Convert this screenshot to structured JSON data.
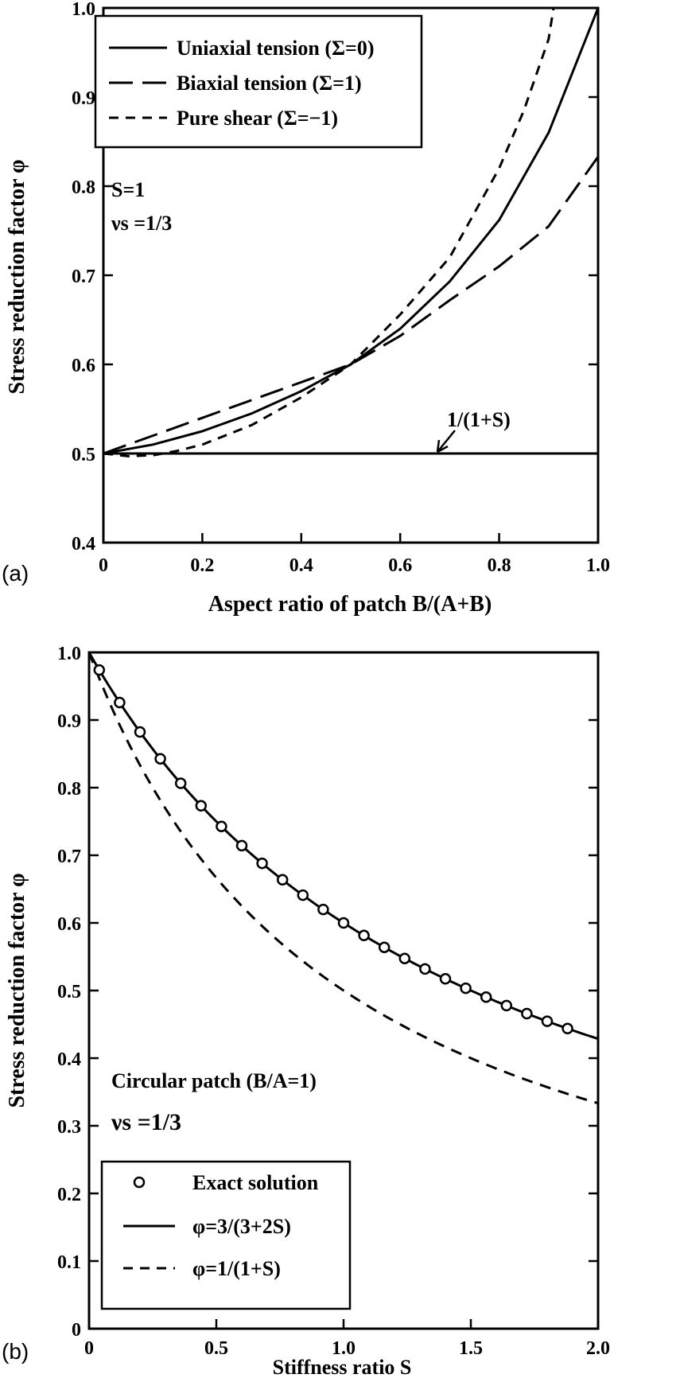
{
  "chart_data": [
    {
      "type": "line",
      "panel_label": "(a)",
      "xlabel": "Aspect ratio of patch   B/(A+B)",
      "ylabel": "Stress reduction factor  φ",
      "xlim": [
        0,
        1.0
      ],
      "ylim": [
        0.4,
        1.0
      ],
      "x_ticks": [
        "0",
        "0.2",
        "0.4",
        "0.6",
        "0.8",
        "1.0"
      ],
      "y_ticks": [
        "0.4",
        "0.5",
        "0.6",
        "0.7",
        "0.8",
        "0.9",
        "1.0"
      ],
      "x": [
        0,
        0.1,
        0.2,
        0.3,
        0.4,
        0.5,
        0.6,
        0.7,
        0.8,
        0.9,
        1.0
      ],
      "series": [
        {
          "name": "Uniaxial tension  (Σ=0)",
          "style": "solid",
          "values": [
            0.5,
            0.51,
            0.525,
            0.545,
            0.57,
            0.6,
            0.64,
            0.693,
            0.762,
            0.86,
            1.0
          ]
        },
        {
          "name": "Biaxial tension (Σ=1)",
          "style": "long-dash",
          "values": [
            0.5,
            0.52,
            0.54,
            0.56,
            0.58,
            0.6,
            0.632,
            0.672,
            0.71,
            0.755,
            0.833
          ]
        },
        {
          "name": "Pure shear (Σ=−1)",
          "style": "short-dash",
          "x": [
            0,
            0.05,
            0.1,
            0.15,
            0.2,
            0.3,
            0.4,
            0.5,
            0.6,
            0.7,
            0.8,
            0.85,
            0.9,
            0.91
          ],
          "values": [
            0.5,
            0.497,
            0.498,
            0.503,
            0.51,
            0.532,
            0.563,
            0.6,
            0.656,
            0.72,
            0.82,
            0.885,
            0.965,
            1.0
          ]
        }
      ],
      "reference_line": {
        "label": "1/(1+S)",
        "value": 0.5
      },
      "annotations": {
        "s_label": "S=1",
        "nu_label": "νs =1/3"
      },
      "legend_position": "top-left"
    },
    {
      "type": "line",
      "panel_label": "(b)",
      "xlabel": "Stiffness ratio  S",
      "ylabel": "Stress reduction factor  φ",
      "xlim": [
        0,
        2.0
      ],
      "ylim": [
        0,
        1.0
      ],
      "x_ticks": [
        "0",
        "0.5",
        "1.0",
        "1.5",
        "2.0"
      ],
      "y_ticks": [
        "0",
        "0.1",
        "0.2",
        "0.3",
        "0.4",
        "0.5",
        "0.6",
        "0.7",
        "0.8",
        "0.9",
        "1.0"
      ],
      "series": [
        {
          "name": "Exact solution",
          "style": "circles",
          "formula": "3/(3+2S)",
          "x_start": 0.04,
          "x_step": 0.08,
          "count": 24
        },
        {
          "name": "φ=3/(3+2S)",
          "style": "solid",
          "formula": "3/(3+2S)"
        },
        {
          "name": "φ=1/(1+S)",
          "style": "dash",
          "formula": "1/(1+S)"
        }
      ],
      "annotations": {
        "patch_label": "Circular patch (B/A=1)",
        "nu_label": "νs =1/3"
      },
      "legend_position": "bottom-left"
    }
  ]
}
